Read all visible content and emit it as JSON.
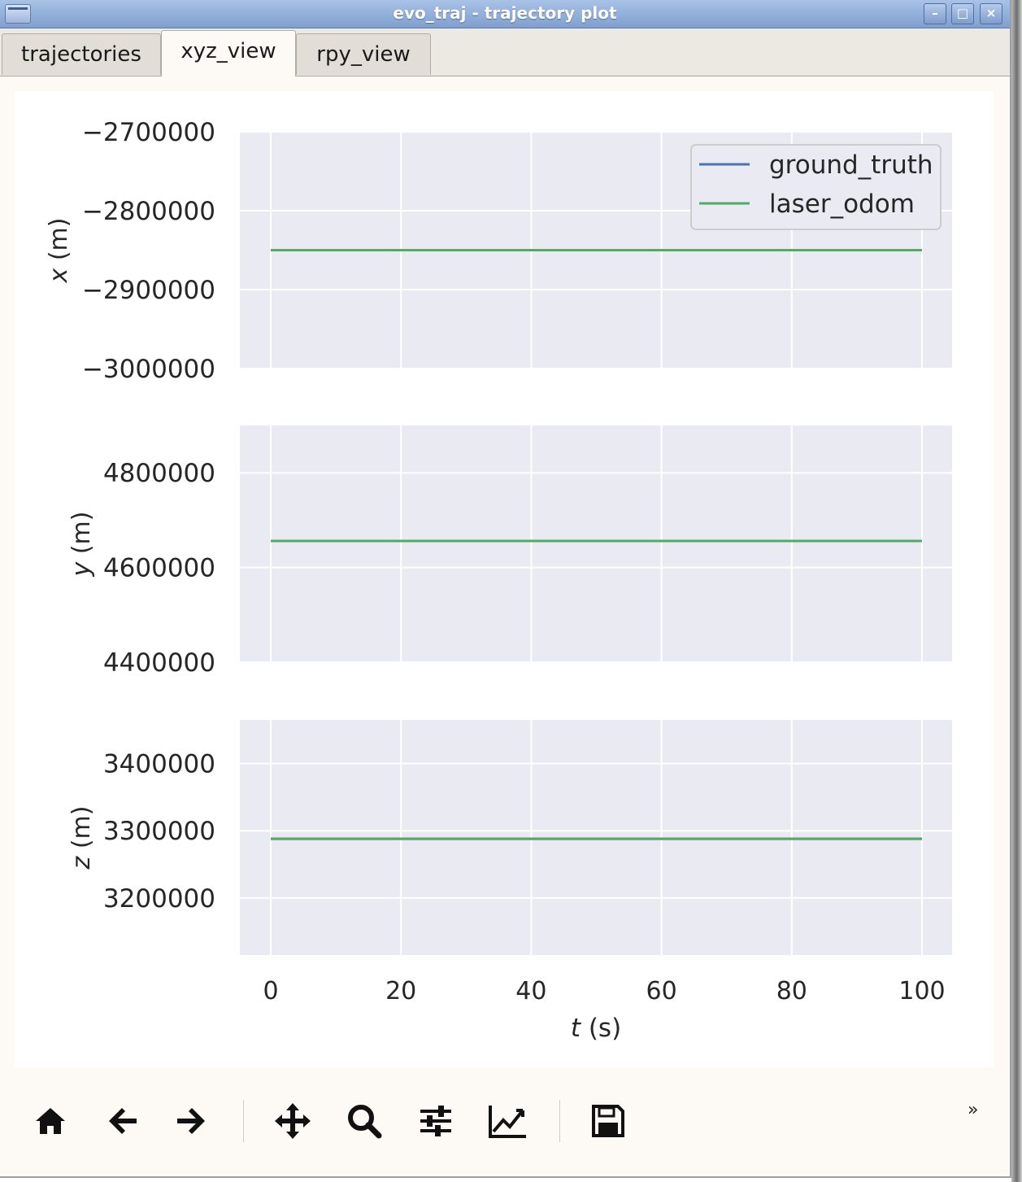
{
  "window": {
    "title": "evo_traj - trajectory plot",
    "minimize_glyph": "–",
    "maximize_glyph": "□",
    "close_glyph": "×"
  },
  "tabs": [
    {
      "label": "trajectories",
      "active": false
    },
    {
      "label": "xyz_view",
      "active": true
    },
    {
      "label": "rpy_view",
      "active": false
    }
  ],
  "colors": {
    "ground_truth": "#4c72b0",
    "laser_odom": "#55a868",
    "axes_bg": "#eaeaf2",
    "grid": "#ffffff"
  },
  "chart_data": [
    {
      "type": "line",
      "ylabel": "x (m)",
      "ylim": [
        -3000000,
        -2700000
      ],
      "yticks": [
        -2700000,
        -2800000,
        -2900000,
        -3000000
      ],
      "ytick_labels": [
        "−2700000",
        "−2800000",
        "−2900000",
        "−3000000"
      ],
      "xlim": [
        0,
        100
      ],
      "grid": true,
      "legend_position": "top-right",
      "series": [
        {
          "name": "ground_truth",
          "x": [
            0,
            100
          ],
          "y": [
            -2850000,
            -2850000
          ]
        },
        {
          "name": "laser_odom",
          "x": [
            0,
            100
          ],
          "y": [
            -2850000,
            -2850000
          ]
        }
      ]
    },
    {
      "type": "line",
      "ylabel": "y (m)",
      "ylim": [
        4400000,
        4900000
      ],
      "yticks": [
        4800000,
        4600000,
        4400000
      ],
      "ytick_labels": [
        "4800000",
        "4600000",
        "4400000"
      ],
      "xlim": [
        0,
        100
      ],
      "grid": true,
      "series": [
        {
          "name": "ground_truth",
          "x": [
            0,
            100
          ],
          "y": [
            4656000,
            4656000
          ]
        },
        {
          "name": "laser_odom",
          "x": [
            0,
            100
          ],
          "y": [
            4656000,
            4656000
          ]
        }
      ]
    },
    {
      "type": "line",
      "ylabel": "z (m)",
      "ylim": [
        3115000,
        3465000
      ],
      "yticks": [
        3400000,
        3300000,
        3200000
      ],
      "ytick_labels": [
        "3400000",
        "3300000",
        "3200000"
      ],
      "xlim": [
        0,
        100
      ],
      "xticks": [
        0,
        20,
        40,
        60,
        80,
        100
      ],
      "xtick_labels": [
        "0",
        "20",
        "40",
        "60",
        "80",
        "100"
      ],
      "xlabel": "t (s)",
      "grid": true,
      "series": [
        {
          "name": "ground_truth",
          "x": [
            0,
            100
          ],
          "y": [
            3288000,
            3288000
          ]
        },
        {
          "name": "laser_odom",
          "x": [
            0,
            100
          ],
          "y": [
            3288000,
            3288000
          ]
        }
      ]
    }
  ],
  "toolbar": [
    {
      "name": "home-icon"
    },
    {
      "name": "back-arrow-icon"
    },
    {
      "name": "forward-arrow-icon"
    },
    {
      "name": "pan-icon"
    },
    {
      "name": "zoom-icon"
    },
    {
      "name": "subplots-config-icon"
    },
    {
      "name": "edit-axes-icon"
    },
    {
      "name": "save-icon"
    }
  ],
  "toolbar_more": "»"
}
